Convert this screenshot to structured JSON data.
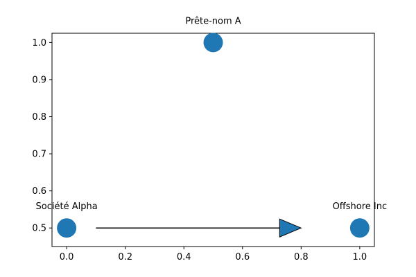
{
  "chart_data": {
    "type": "scatter",
    "title": "",
    "xlabel": "",
    "ylabel": "",
    "xlim": [
      -0.05,
      1.05
    ],
    "ylim": [
      0.45,
      1.025
    ],
    "xticks": [
      0.0,
      0.2,
      0.4,
      0.6,
      0.8,
      1.0
    ],
    "xtick_labels": [
      "0.0",
      "0.2",
      "0.4",
      "0.6",
      "0.8",
      "1.0"
    ],
    "yticks": [
      0.5,
      0.6,
      0.7,
      0.8,
      0.9,
      1.0
    ],
    "ytick_labels": [
      "0.5",
      "0.6",
      "0.7",
      "0.8",
      "0.9",
      "1.0"
    ],
    "grid": false,
    "points": [
      {
        "label": "Société Alpha",
        "x": 0.0,
        "y": 0.5
      },
      {
        "label": "Prête-nom A",
        "x": 0.5,
        "y": 1.0
      },
      {
        "label": "Offshore Inc",
        "x": 1.0,
        "y": 0.5
      }
    ],
    "arrows": [
      {
        "x_start": 0.1,
        "y_start": 0.5,
        "x_end": 0.8,
        "y_end": 0.5
      }
    ],
    "colors": {
      "marker": "#1f77b4",
      "arrow_fill": "#1f77b4",
      "arrow_edge": "#000000",
      "axes": "#000000"
    }
  }
}
